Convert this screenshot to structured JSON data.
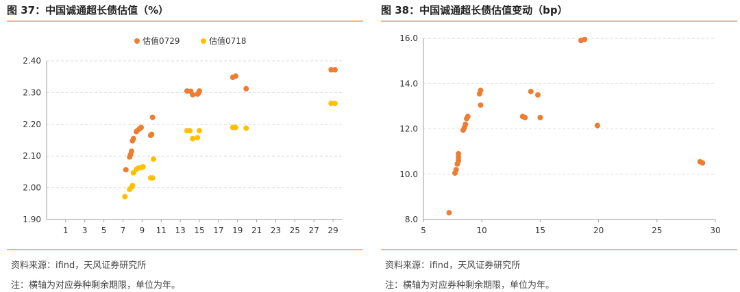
{
  "left": {
    "title": "图 37：中国诚通超长债估值（%）",
    "source": "资料来源：ifind，天风证券研究所",
    "note": "注：横轴为对应券种剩余期限，单位为年。",
    "chart_data": {
      "type": "scatter",
      "xlim": [
        -1,
        30
      ],
      "ylim": [
        1.9,
        2.4
      ],
      "x_ticks": [
        "1",
        "3",
        "5",
        "7",
        "9",
        "11",
        "13",
        "15",
        "17",
        "19",
        "21",
        "23",
        "25",
        "27",
        "29"
      ],
      "y_ticks": [
        "1.90",
        "2.00",
        "2.10",
        "2.20",
        "2.30",
        "2.40"
      ],
      "grid": true,
      "legend_position": "top-center",
      "series": [
        {
          "name": "估值0729",
          "color": "#ED7D31",
          "points": [
            [
              7.3,
              2.057
            ],
            [
              7.7,
              2.097
            ],
            [
              7.8,
              2.105
            ],
            [
              7.9,
              2.115
            ],
            [
              8.0,
              2.148
            ],
            [
              8.1,
              2.155
            ],
            [
              8.4,
              2.177
            ],
            [
              8.5,
              2.18
            ],
            [
              8.7,
              2.185
            ],
            [
              8.9,
              2.19
            ],
            [
              9.9,
              2.165
            ],
            [
              10.0,
              2.168
            ],
            [
              10.1,
              2.222
            ],
            [
              13.7,
              2.305
            ],
            [
              14.1,
              2.304
            ],
            [
              14.3,
              2.293
            ],
            [
              14.8,
              2.295
            ],
            [
              14.9,
              2.298
            ],
            [
              15.0,
              2.305
            ],
            [
              18.5,
              2.348
            ],
            [
              18.8,
              2.352
            ],
            [
              19.9,
              2.312
            ],
            [
              28.8,
              2.372
            ],
            [
              29.2,
              2.372
            ]
          ]
        },
        {
          "name": "估值0718",
          "color": "#FFC000",
          "points": [
            [
              7.2,
              1.972
            ],
            [
              7.7,
              1.995
            ],
            [
              7.9,
              2.002
            ],
            [
              8.0,
              2.007
            ],
            [
              8.1,
              2.047
            ],
            [
              8.4,
              2.058
            ],
            [
              8.6,
              2.062
            ],
            [
              8.9,
              2.064
            ],
            [
              9.1,
              2.066
            ],
            [
              9.9,
              2.031
            ],
            [
              10.1,
              2.031
            ],
            [
              10.2,
              2.09
            ],
            [
              13.7,
              2.18
            ],
            [
              14.0,
              2.18
            ],
            [
              14.3,
              2.155
            ],
            [
              14.8,
              2.158
            ],
            [
              15.0,
              2.18
            ],
            [
              18.5,
              2.19
            ],
            [
              18.8,
              2.19
            ],
            [
              19.9,
              2.188
            ],
            [
              28.8,
              2.266
            ],
            [
              29.2,
              2.266
            ]
          ]
        }
      ]
    }
  },
  "right": {
    "title": "图 38：中国诚通超长债估值变动（bp）",
    "source": "资料来源：ifind，天风证券研究所",
    "note": "注：横轴为对应券种剩余期限，单位为年。",
    "chart_data": {
      "type": "scatter",
      "xlim": [
        5,
        30
      ],
      "ylim": [
        8,
        16
      ],
      "x_ticks": [
        "5",
        "10",
        "15",
        "20",
        "25",
        "30"
      ],
      "y_ticks": [
        "8.0",
        "10.0",
        "12.0",
        "14.0",
        "16.0"
      ],
      "grid": true,
      "series": [
        {
          "color": "#ED7D31",
          "points": [
            [
              7.2,
              8.3
            ],
            [
              7.7,
              10.05
            ],
            [
              7.8,
              10.2
            ],
            [
              7.9,
              10.45
            ],
            [
              8.0,
              10.6
            ],
            [
              8.0,
              10.75
            ],
            [
              8.0,
              10.9
            ],
            [
              8.4,
              11.95
            ],
            [
              8.5,
              12.05
            ],
            [
              8.6,
              12.2
            ],
            [
              8.7,
              12.45
            ],
            [
              8.8,
              12.55
            ],
            [
              9.8,
              13.55
            ],
            [
              9.9,
              13.7
            ],
            [
              9.9,
              13.05
            ],
            [
              13.5,
              12.55
            ],
            [
              13.7,
              12.5
            ],
            [
              14.2,
              13.65
            ],
            [
              14.8,
              13.5
            ],
            [
              15.0,
              12.5
            ],
            [
              18.5,
              15.9
            ],
            [
              18.8,
              15.95
            ],
            [
              19.9,
              12.15
            ],
            [
              28.7,
              10.55
            ],
            [
              28.9,
              10.5
            ]
          ]
        }
      ]
    }
  }
}
